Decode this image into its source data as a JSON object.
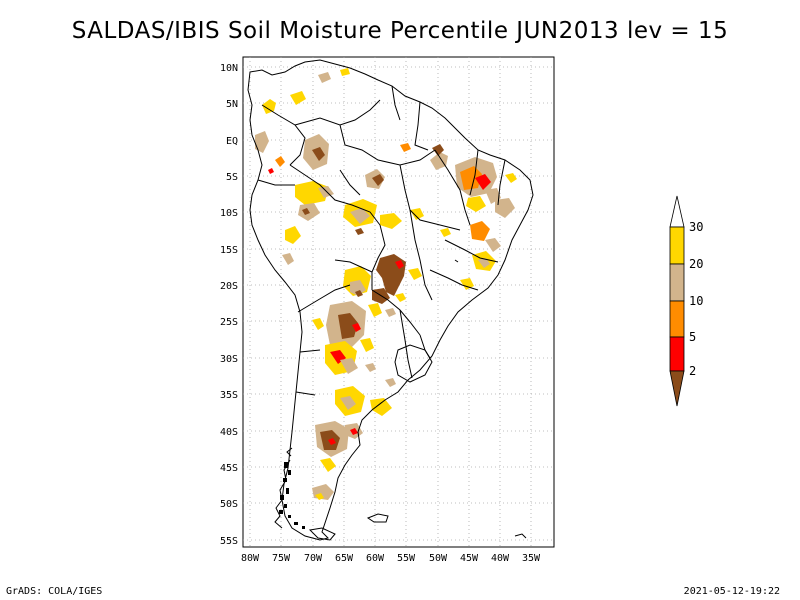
{
  "title": "SALDAS/IBIS Soil Moisture Percentile JUN2013 lev = 15",
  "footer": {
    "left": "GrADS: COLA/IGES",
    "right": "2021-05-12-19:22"
  },
  "map": {
    "region": "South America",
    "lon_range": [
      -80,
      -30
    ],
    "lat_range": [
      -56,
      12
    ],
    "lat_ticks": [
      "10N",
      "5N",
      "EQ",
      "5S",
      "10S",
      "15S",
      "20S",
      "25S",
      "30S",
      "35S",
      "40S",
      "45S",
      "50S",
      "55S"
    ],
    "lon_ticks": [
      "80W",
      "75W",
      "70W",
      "65W",
      "60W",
      "55W",
      "50W",
      "45W",
      "40W",
      "35W"
    ]
  },
  "colorbar": {
    "labels": [
      "2",
      "5",
      "10",
      "20",
      "30"
    ],
    "colors": {
      "below_2": "#8b4c1a",
      "2_5": "#ff0000",
      "5_10": "#ff8c00",
      "10_20": "#d2b48c",
      "20_30": "#ffd700",
      "above_30": "#ffffff"
    }
  }
}
